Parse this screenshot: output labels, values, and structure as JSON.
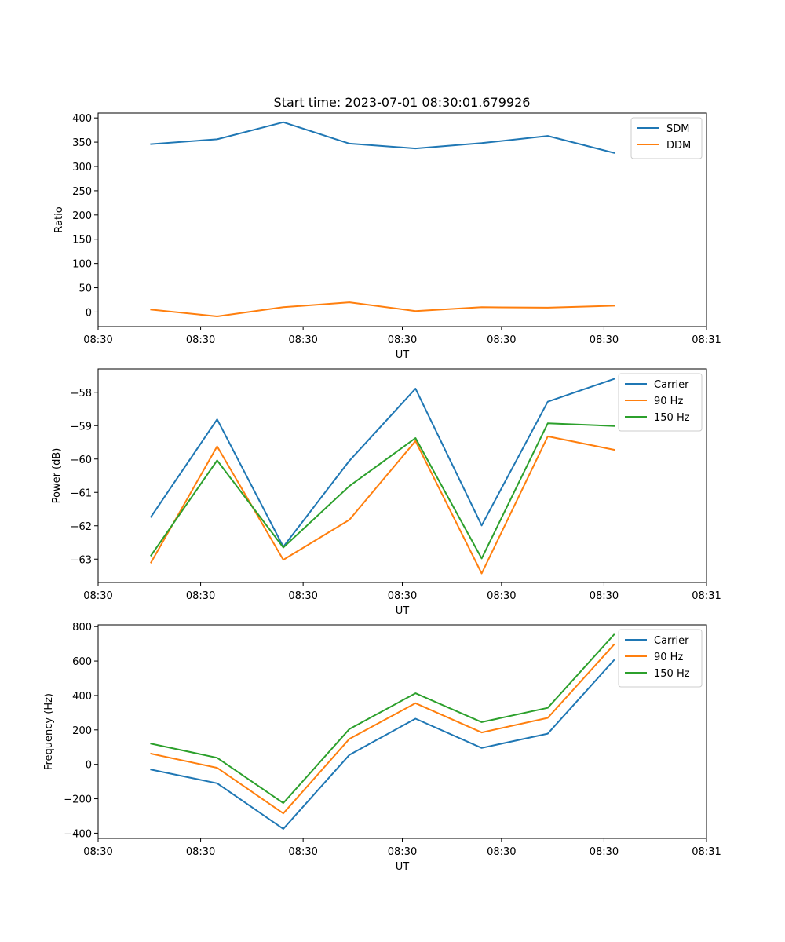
{
  "figure": {
    "title": "Start time: 2023-07-01 08:30:01.679926"
  },
  "chart_data": [
    {
      "type": "line",
      "title": "Start time: 2023-07-01 08:30:01.679926",
      "xlabel": "UT",
      "ylabel": "Ratio",
      "x": [
        1,
        2,
        3,
        4,
        5,
        6,
        7,
        8
      ],
      "xlim": [
        0.2,
        9.4
      ],
      "xticks": [
        0.2,
        1.75,
        3.3,
        4.8,
        6.3,
        7.85,
        9.4
      ],
      "xtick_labels": [
        "08:30",
        "08:30",
        "08:30",
        "08:30",
        "08:30",
        "08:30",
        "08:31"
      ],
      "ylim": [
        -30,
        410
      ],
      "yticks": [
        0,
        50,
        100,
        150,
        200,
        250,
        300,
        350,
        400
      ],
      "ytick_labels": [
        "0",
        "50",
        "100",
        "150",
        "200",
        "250",
        "300",
        "350",
        "400"
      ],
      "legend_position": "top-right",
      "series": [
        {
          "name": "SDM",
          "color": "#1f77b4",
          "values": [
            346,
            356,
            391,
            347,
            337,
            348,
            363,
            328
          ]
        },
        {
          "name": "DDM",
          "color": "#ff7f0e",
          "values": [
            5,
            -9,
            10,
            20,
            2,
            10,
            9,
            13
          ]
        }
      ]
    },
    {
      "type": "line",
      "xlabel": "UT",
      "ylabel": "Power (dB)",
      "x": [
        1,
        2,
        3,
        4,
        5,
        6,
        7,
        8
      ],
      "xlim": [
        0.2,
        9.4
      ],
      "xticks": [
        0.2,
        1.75,
        3.3,
        4.8,
        6.3,
        7.85,
        9.4
      ],
      "xtick_labels": [
        "08:30",
        "08:30",
        "08:30",
        "08:30",
        "08:30",
        "08:30",
        "08:31"
      ],
      "ylim": [
        -63.7,
        -57.3
      ],
      "yticks": [
        -63,
        -62,
        -61,
        -60,
        -59,
        -58
      ],
      "ytick_labels": [
        "−63",
        "−62",
        "−61",
        "−60",
        "−59",
        "−58"
      ],
      "legend_position": "top-right",
      "series": [
        {
          "name": "Carrier",
          "color": "#1f77b4",
          "values": [
            -61.73,
            -58.81,
            -62.63,
            -60.05,
            -57.89,
            -61.99,
            -58.28,
            -57.6
          ]
        },
        {
          "name": "90 Hz",
          "color": "#ff7f0e",
          "values": [
            -63.1,
            -59.62,
            -63.02,
            -61.82,
            -59.46,
            -63.43,
            -59.32,
            -59.72
          ]
        },
        {
          "name": "150 Hz",
          "color": "#2ca02c",
          "values": [
            -62.89,
            -60.04,
            -62.65,
            -60.81,
            -59.37,
            -62.98,
            -58.93,
            -59.01
          ]
        }
      ]
    },
    {
      "type": "line",
      "xlabel": "UT",
      "ylabel": "Frequency (Hz)",
      "x": [
        1,
        2,
        3,
        4,
        5,
        6,
        7,
        8
      ],
      "xlim": [
        0.2,
        9.4
      ],
      "xticks": [
        0.2,
        1.75,
        3.3,
        4.8,
        6.3,
        7.85,
        9.4
      ],
      "xtick_labels": [
        "08:30",
        "08:30",
        "08:30",
        "08:30",
        "08:30",
        "08:30",
        "08:31"
      ],
      "ylim": [
        -430,
        810
      ],
      "yticks": [
        -400,
        -200,
        0,
        200,
        400,
        600,
        800
      ],
      "ytick_labels": [
        "−400",
        "−200",
        "0",
        "200",
        "400",
        "600",
        "800"
      ],
      "legend_position": "top-right",
      "series": [
        {
          "name": "Carrier",
          "color": "#1f77b4",
          "values": [
            -30,
            -110,
            -375,
            55,
            265,
            95,
            178,
            605
          ]
        },
        {
          "name": "90 Hz",
          "color": "#ff7f0e",
          "values": [
            62,
            -20,
            -285,
            148,
            355,
            185,
            270,
            695
          ]
        },
        {
          "name": "150 Hz",
          "color": "#2ca02c",
          "values": [
            120,
            38,
            -225,
            205,
            413,
            245,
            328,
            753
          ]
        }
      ]
    }
  ]
}
